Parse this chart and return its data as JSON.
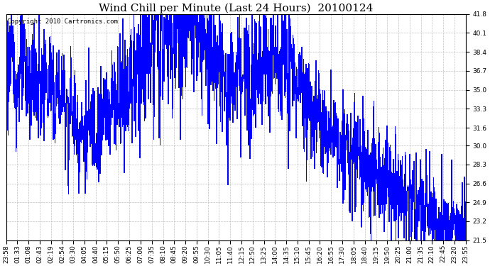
{
  "title": "Wind Chill per Minute (Last 24 Hours)  20100124",
  "copyright": "Copyright 2010 Cartronics.com",
  "line_color": "#0000FF",
  "bg_color": "#FFFFFF",
  "plot_bg_color": "#FFFFFF",
  "grid_color": "#C0C0C0",
  "ylim": [
    21.5,
    41.8
  ],
  "yticks": [
    21.5,
    23.2,
    24.9,
    26.6,
    28.3,
    30.0,
    31.6,
    33.3,
    35.0,
    36.7,
    38.4,
    40.1,
    41.8
  ],
  "xtick_labels": [
    "23:58",
    "01:33",
    "01:08",
    "02:43",
    "02:19",
    "02:54",
    "03:30",
    "04:05",
    "04:40",
    "05:15",
    "05:50",
    "06:25",
    "07:00",
    "07:35",
    "08:10",
    "08:45",
    "09:20",
    "09:55",
    "10:30",
    "11:05",
    "11:40",
    "12:15",
    "12:50",
    "13:25",
    "14:00",
    "14:35",
    "15:10",
    "15:45",
    "16:20",
    "16:55",
    "17:30",
    "18:05",
    "18:40",
    "19:15",
    "19:50",
    "20:25",
    "21:00",
    "21:35",
    "22:10",
    "22:45",
    "23:20",
    "23:55"
  ],
  "title_fontsize": 11,
  "tick_fontsize": 6.5,
  "copyright_fontsize": 6.5,
  "figsize": [
    6.9,
    3.75
  ],
  "dpi": 100
}
